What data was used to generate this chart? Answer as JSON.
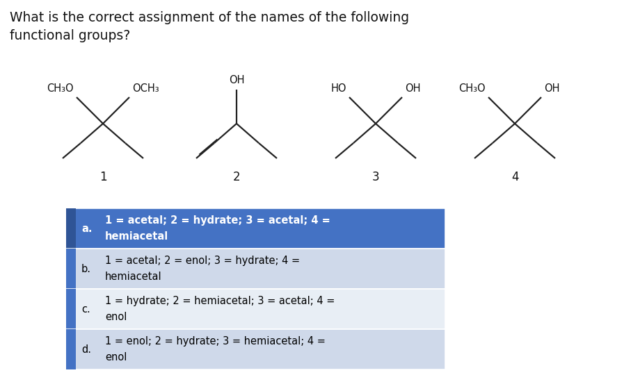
{
  "title_line1": "What is the correct assignment of the names of the following",
  "title_line2": "functional groups?",
  "title_fontsize": 13.5,
  "bg_color": "#ffffff",
  "table_options": [
    {
      "letter": "a.",
      "text_line1": "1 = acetal; 2 = hydrate; 3 = acetal; 4 =",
      "text_line2": "hemiacetal",
      "bg": "#4472C4",
      "text_color": "#ffffff",
      "bold": true,
      "bar_color": "#2F5496"
    },
    {
      "letter": "b.",
      "text_line1": "1 = acetal; 2 = enol; 3 = hydrate; 4 =",
      "text_line2": "hemiacetal",
      "bg": "#cfd9ea",
      "text_color": "#000000",
      "bold": false,
      "bar_color": "#4472C4"
    },
    {
      "letter": "c.",
      "text_line1": "1 = hydrate; 2 = hemiacetal; 3 = acetal; 4 =",
      "text_line2": "enol",
      "bg": "#e8eef5",
      "text_color": "#000000",
      "bold": false,
      "bar_color": "#4472C4"
    },
    {
      "letter": "d.",
      "text_line1": "1 = enol; 2 = hydrate; 3 = hemiacetal; 4 =",
      "text_line2": "enol",
      "bg": "#cfd9ea",
      "text_color": "#000000",
      "bold": false,
      "bar_color": "#4472C4"
    }
  ],
  "line_color": "#222222",
  "lw": 1.6
}
